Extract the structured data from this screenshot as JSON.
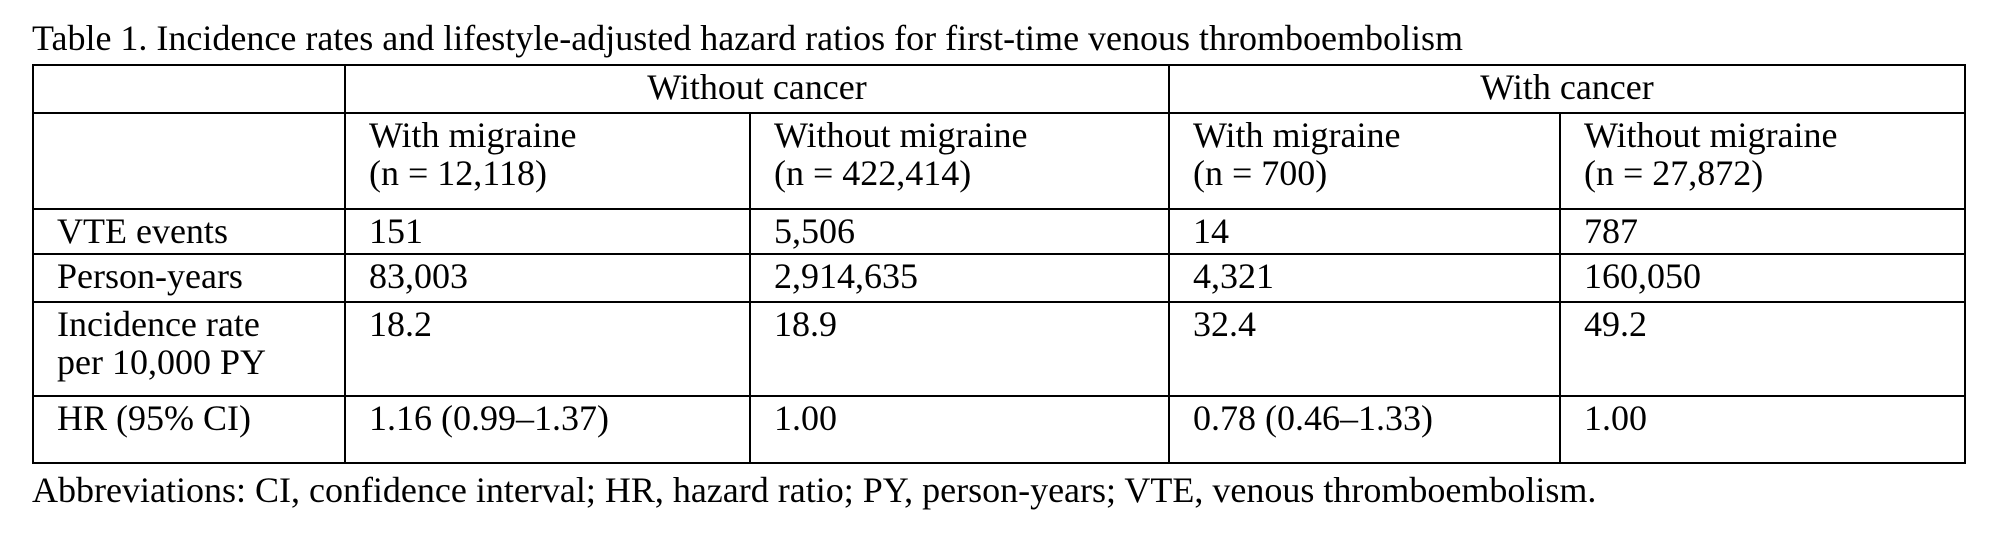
{
  "title": "Table 1. Incidence rates and lifestyle-adjusted hazard ratios for first-time venous thromboembolism",
  "table": {
    "groups": [
      "Without cancer",
      "With cancer"
    ],
    "subheaders": [
      [
        "With migraine",
        "(n = 12,118)"
      ],
      [
        "Without migraine",
        "(n = 422,414)"
      ],
      [
        "With migraine",
        "(n = 700)"
      ],
      [
        "Without migraine",
        "(n = 27,872)"
      ]
    ],
    "rows": [
      [
        [
          "VTE events"
        ],
        "151",
        "5,506",
        "14",
        "787"
      ],
      [
        [
          "Person-years"
        ],
        "83,003",
        "2,914,635",
        "4,321",
        "160,050"
      ],
      [
        [
          "Incidence rate",
          "per 10,000 PY"
        ],
        "18.2",
        "18.9",
        "32.4",
        "49.2"
      ],
      [
        [
          "HR (95% CI)"
        ],
        "1.16 (0.99–1.37)",
        "1.00",
        "0.78 (0.46–1.33)",
        "1.00"
      ]
    ]
  },
  "footnote": "Abbreviations: CI, confidence interval; HR, hazard ratio; PY, person-years; VTE, venous thromboembolism."
}
